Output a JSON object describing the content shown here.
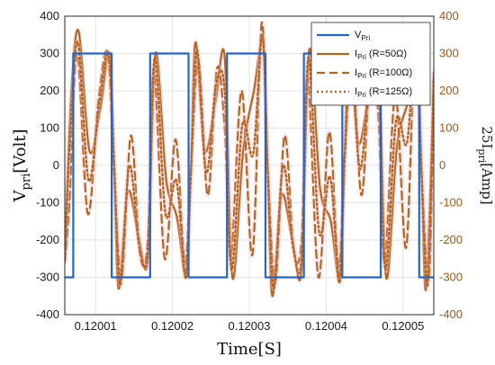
{
  "chart_data": {
    "type": "line",
    "xlabel": "Time[S]",
    "ylabel_left": "V_pri[Volt]",
    "ylabel_right": "25I_pri[Amp]",
    "xlim": [
      0.120006,
      0.120054
    ],
    "ylim_left": [
      -400,
      400
    ],
    "ylim_right": [
      -400,
      400
    ],
    "x_ticks": [
      "0.12001",
      "0.12002",
      "0.12003",
      "0.12004",
      "0.12005"
    ],
    "y_ticks_left": [
      "400",
      "300",
      "200",
      "100",
      "0",
      "-100",
      "-200",
      "-300",
      "-400"
    ],
    "y_ticks_right": [
      "400",
      "300",
      "200",
      "100",
      "0",
      "-100",
      "-200",
      "-300",
      "-400"
    ],
    "grid": true,
    "legend_position": "top-right",
    "colors": {
      "voltage": "#2166c8",
      "current": "#b5651d",
      "right_axis": "#a25a18"
    },
    "series": [
      {
        "name": "V_Pri",
        "legend_main": "V",
        "legend_sub": "Pri",
        "style": "solid",
        "x": [
          0.120006,
          0.1200071,
          0.1200071,
          0.1200121,
          0.1200121,
          0.1200171,
          0.1200171,
          0.1200221,
          0.1200221,
          0.1200271,
          0.1200271,
          0.1200321,
          0.1200321,
          0.1200371,
          0.1200371,
          0.1200421,
          0.1200421,
          0.1200471,
          0.1200471,
          0.1200521,
          0.1200521,
          0.120054
        ],
        "y": [
          -300,
          -300,
          300,
          300,
          -300,
          -300,
          300,
          300,
          -300,
          -300,
          300,
          300,
          -300,
          -300,
          300,
          300,
          -300,
          -300,
          300,
          300,
          -300,
          -300
        ]
      },
      {
        "name": "I_Pri (R=50Ω)",
        "legend_main": "I",
        "legend_sub": "Pri",
        "legend_suffix": " (R=50Ω)",
        "style": "solid",
        "x": [
          0.120006,
          0.1200068,
          0.1200078,
          0.1200092,
          0.1200106,
          0.1200118,
          0.1200124,
          0.120013,
          0.1200142,
          0.1200156,
          0.1200168,
          0.1200178,
          0.1200192,
          0.1200206,
          0.1200218,
          0.1200224,
          0.120023,
          0.1200242,
          0.1200256,
          0.1200268,
          0.1200278,
          0.1200292,
          0.1200306,
          0.1200318,
          0.1200324,
          0.120033,
          0.1200342,
          0.1200356,
          0.1200368,
          0.1200378,
          0.1200392,
          0.1200406,
          0.1200418,
          0.1200424,
          0.120043,
          0.1200442,
          0.1200456,
          0.1200468,
          0.1200478,
          0.1200492,
          0.1200506,
          0.1200518,
          0.1200524,
          0.120053,
          0.120054
        ],
        "y": [
          -250,
          180,
          360,
          40,
          150,
          300,
          20,
          -330,
          -70,
          -190,
          -250,
          300,
          -40,
          -140,
          -300,
          -20,
          330,
          40,
          170,
          290,
          -300,
          40,
          200,
          330,
          -20,
          -350,
          -80,
          -200,
          -280,
          310,
          -60,
          -150,
          -310,
          20,
          320,
          60,
          200,
          300,
          -300,
          50,
          170,
          310,
          -10,
          -330,
          230
        ]
      },
      {
        "name": "I_Pri (R=100Ω)",
        "legend_main": "I",
        "legend_sub": "Pri",
        "legend_suffix": " (R=100Ω)",
        "style": "dashed",
        "x": [
          0.120006,
          0.1200066,
          0.1200076,
          0.120009,
          0.1200104,
          0.1200116,
          0.1200124,
          0.1200134,
          0.1200146,
          0.1200158,
          0.1200168,
          0.1200176,
          0.120019,
          0.1200204,
          0.1200216,
          0.1200224,
          0.1200234,
          0.1200246,
          0.1200258,
          0.1200268,
          0.1200276,
          0.120029,
          0.1200304,
          0.1200316,
          0.1200324,
          0.1200334,
          0.1200346,
          0.1200358,
          0.1200368,
          0.1200376,
          0.120039,
          0.1200404,
          0.1200416,
          0.1200424,
          0.1200434,
          0.1200446,
          0.1200458,
          0.1200468,
          0.1200476,
          0.120049,
          0.1200504,
          0.1200516,
          0.1200524,
          0.1200534,
          0.120054
        ],
        "y": [
          -260,
          -100,
          300,
          -130,
          180,
          300,
          -20,
          -300,
          80,
          -240,
          -200,
          260,
          -250,
          70,
          -260,
          -10,
          280,
          -80,
          260,
          100,
          -250,
          200,
          -240,
          380,
          -10,
          -310,
          80,
          -230,
          -200,
          240,
          -300,
          90,
          -270,
          20,
          270,
          -80,
          270,
          130,
          -260,
          190,
          -220,
          360,
          -20,
          -300,
          250
        ]
      },
      {
        "name": "I_Pri (R=125Ω)",
        "legend_main": "I",
        "legend_sub": "Pri",
        "legend_suffix": " (R=125Ω)",
        "style": "dotted",
        "x": [
          0.120006,
          0.1200067,
          0.1200077,
          0.1200091,
          0.1200105,
          0.1200117,
          0.1200124,
          0.1200132,
          0.1200144,
          0.1200157,
          0.1200168,
          0.1200177,
          0.1200191,
          0.1200205,
          0.1200217,
          0.1200224,
          0.1200232,
          0.1200244,
          0.1200257,
          0.1200268,
          0.1200277,
          0.1200291,
          0.1200305,
          0.1200317,
          0.1200324,
          0.1200332,
          0.1200344,
          0.1200357,
          0.1200368,
          0.1200377,
          0.1200391,
          0.1200405,
          0.1200417,
          0.1200424,
          0.1200432,
          0.1200444,
          0.1200457,
          0.1200468,
          0.1200477,
          0.1200491,
          0.1200505,
          0.1200517,
          0.1200524,
          0.1200532,
          0.120054
        ],
        "y": [
          -250,
          80,
          330,
          -40,
          170,
          300,
          10,
          -320,
          0,
          -220,
          -230,
          290,
          -130,
          -40,
          -290,
          -20,
          310,
          -20,
          220,
          200,
          -280,
          110,
          30,
          350,
          -20,
          -330,
          0,
          -220,
          -250,
          290,
          -180,
          -30,
          -300,
          20,
          300,
          -10,
          240,
          230,
          -280,
          120,
          60,
          340,
          -20,
          -320,
          240
        ]
      }
    ]
  }
}
